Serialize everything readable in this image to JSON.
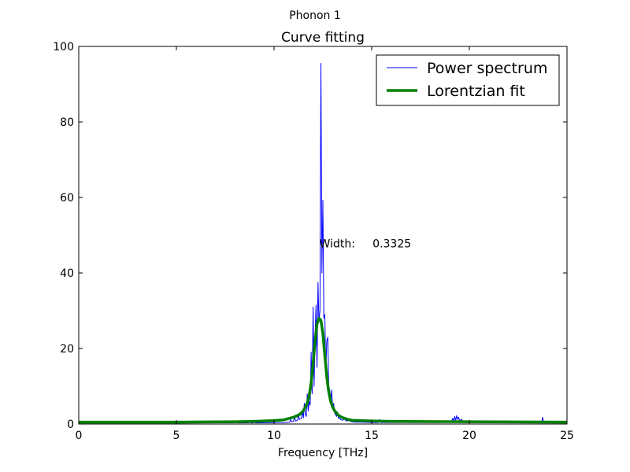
{
  "figure": {
    "suptitle": "Phonon 1"
  },
  "chart_data": {
    "type": "line",
    "title": "Curve fitting",
    "xlabel": "Frequency [THz]",
    "ylabel": "",
    "xlim": [
      0,
      25
    ],
    "ylim": [
      0,
      100
    ],
    "xticks": [
      0,
      5,
      10,
      15,
      20,
      25
    ],
    "yticks": [
      0,
      20,
      40,
      60,
      80,
      100
    ],
    "grid": false,
    "legend_position": "top-right",
    "annotation": {
      "text": "Width:     0.3325",
      "x": 12.4,
      "y": 48
    },
    "series": [
      {
        "name": "Power spectrum",
        "color": "#0000ff",
        "style": "thin",
        "x": [
          0,
          7.9,
          8.0,
          8.1,
          8.7,
          8.75,
          8.8,
          8.95,
          9.0,
          9.05,
          10.5,
          10.8,
          10.85,
          10.9,
          11.0,
          11.05,
          11.1,
          11.2,
          11.25,
          11.3,
          11.4,
          11.45,
          11.5,
          11.55,
          11.6,
          11.65,
          11.7,
          11.75,
          11.8,
          11.85,
          11.9,
          11.95,
          12.0,
          12.05,
          12.1,
          12.15,
          12.2,
          12.25,
          12.3,
          12.35,
          12.4,
          12.45,
          12.5,
          12.55,
          12.6,
          12.65,
          12.7,
          12.75,
          12.8,
          12.85,
          12.9,
          12.95,
          13.0,
          13.05,
          13.1,
          13.15,
          13.2,
          13.25,
          13.3,
          13.35,
          13.4,
          13.5,
          13.6,
          13.7,
          13.8,
          14.0,
          14.2,
          14.5,
          15.0,
          15.35,
          15.4,
          15.45,
          16.0,
          17.0,
          18.5,
          19.1,
          19.15,
          19.2,
          19.25,
          19.3,
          19.35,
          19.4,
          19.45,
          19.5,
          19.6,
          19.7,
          19.8,
          20.0,
          21.0,
          23.7,
          23.75,
          23.8,
          25
        ],
        "y": [
          0.3,
          0.3,
          0.6,
          0.3,
          0.3,
          0.8,
          0.3,
          0.3,
          1.0,
          0.3,
          0.4,
          0.5,
          1.2,
          0.6,
          0.7,
          2.0,
          0.8,
          1.0,
          2.5,
          1.2,
          1.5,
          3.5,
          1.6,
          5.5,
          2.5,
          2.0,
          8.0,
          3.5,
          6.0,
          5.0,
          19.0,
          8.0,
          31.0,
          10.0,
          23.0,
          31.5,
          15.0,
          37.5,
          27.0,
          30.0,
          95.5,
          40.0,
          59.3,
          28.0,
          29.0,
          14.0,
          22.0,
          23.0,
          10.0,
          9.0,
          6.0,
          9.0,
          4.0,
          5.5,
          3.0,
          2.5,
          2.0,
          3.2,
          1.5,
          1.8,
          1.2,
          1.0,
          1.3,
          0.8,
          0.9,
          0.6,
          0.5,
          0.5,
          0.4,
          0.4,
          1.2,
          0.4,
          0.4,
          0.4,
          0.4,
          0.8,
          1.5,
          0.8,
          2.0,
          1.0,
          2.2,
          1.2,
          1.8,
          0.9,
          1.2,
          0.7,
          0.8,
          0.5,
          0.4,
          0.4,
          1.8,
          0.4,
          0.4
        ]
      },
      {
        "name": "Lorentzian fit",
        "color": "#008000",
        "style": "thick",
        "x": [
          0,
          5,
          8,
          9,
          10,
          10.5,
          11,
          11.3,
          11.5,
          11.7,
          11.8,
          11.9,
          12.0,
          12.1,
          12.2,
          12.3,
          12.4,
          12.5,
          12.6,
          12.7,
          12.8,
          12.9,
          13.0,
          13.1,
          13.3,
          13.5,
          13.8,
          14,
          15,
          16,
          20,
          25
        ],
        "y": [
          0.5,
          0.5,
          0.6,
          0.7,
          0.9,
          1.1,
          1.8,
          2.5,
          3.5,
          5.5,
          7.5,
          11.0,
          16.0,
          22.0,
          26.5,
          28.0,
          27.5,
          24.0,
          18.0,
          12.5,
          8.5,
          6.0,
          4.5,
          3.5,
          2.3,
          1.7,
          1.2,
          1.0,
          0.8,
          0.7,
          0.6,
          0.5
        ]
      }
    ]
  }
}
